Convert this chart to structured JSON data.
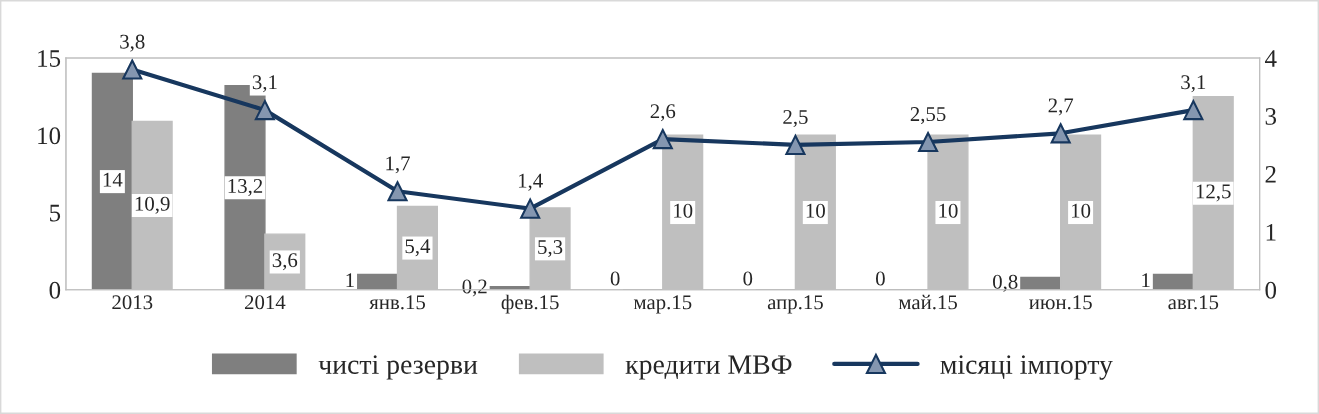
{
  "chart_data": {
    "type": "bar",
    "categories": [
      "2013",
      "2014",
      "янв.15",
      "фев.15",
      "мар.15",
      "апр.15",
      "май.15",
      "июн.15",
      "авг.15"
    ],
    "series": [
      {
        "name": "чисті резерви",
        "color": "#7f7f7f",
        "values": [
          14,
          13.2,
          1,
          0.2,
          0,
          0,
          0,
          0.8,
          1
        ],
        "value_labels": [
          "14",
          "13,2",
          "1",
          "0,2",
          "0",
          "0",
          "0",
          "0,8",
          "1"
        ]
      },
      {
        "name": "кредити МВФ",
        "color": "#bfbfbf",
        "values": [
          10.9,
          3.6,
          5.4,
          5.3,
          10,
          10,
          10,
          10,
          12.5
        ],
        "value_labels": [
          "10,9",
          "3,6",
          "5,4",
          "5,3",
          "10",
          "10",
          "10",
          "10",
          "12,5"
        ]
      },
      {
        "name": "місяці імпорту",
        "type": "line",
        "axis": "y2",
        "color": "#17375e",
        "marker": "triangle",
        "values": [
          3.8,
          3.1,
          1.7,
          1.4,
          2.6,
          2.5,
          2.55,
          2.7,
          3.1
        ],
        "value_labels": [
          "3,8",
          "3,1",
          "1,7",
          "1,4",
          "2,6",
          "2,5",
          "2,55",
          "2,7",
          "3,1"
        ]
      }
    ],
    "ylim": [
      0,
      15
    ],
    "yticks": [
      0,
      5,
      10,
      15
    ],
    "y2lim": [
      0,
      4
    ],
    "y2ticks": [
      0,
      1,
      2,
      3,
      4
    ],
    "legend": "bottom",
    "grid": false
  }
}
